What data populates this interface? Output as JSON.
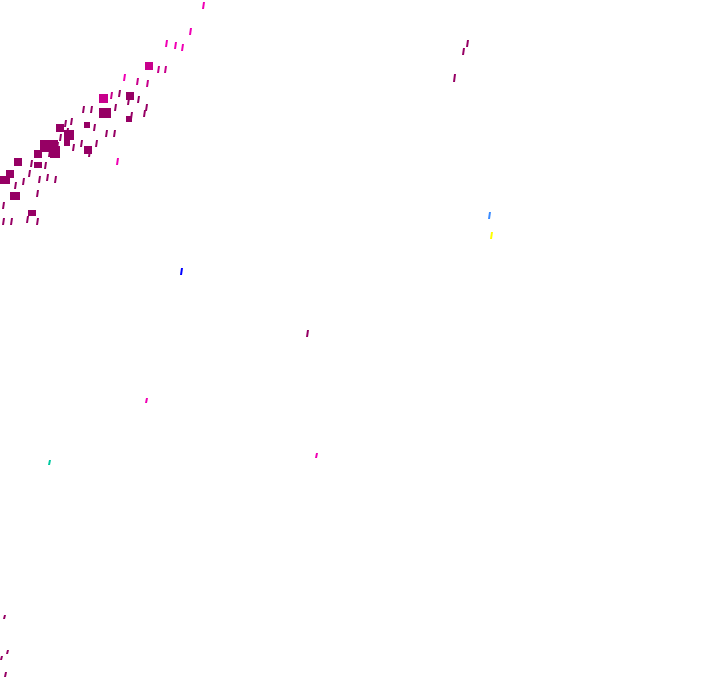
{
  "map": {
    "layer": "precipitation-radar-overlay",
    "colors": {
      "dark_magenta": "#960064",
      "magenta": "#c8008c",
      "bright_magenta": "#f000b4",
      "blue": "#0000ff",
      "light_blue": "#3c8cff",
      "yellow": "#ffff00",
      "cyan": "#00c8a0",
      "background": "#ffffff"
    }
  }
}
